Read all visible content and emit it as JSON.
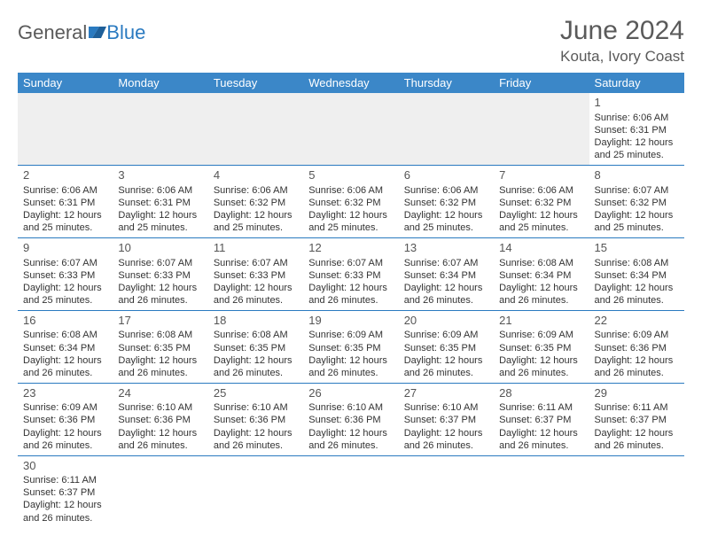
{
  "brand": {
    "part1": "General",
    "part2": "Blue"
  },
  "title": "June 2024",
  "location": "Kouta, Ivory Coast",
  "colors": {
    "header_bg": "#3b87c8",
    "header_fg": "#ffffff",
    "accent": "#2a7ac0",
    "text": "#333333",
    "muted_bg": "#efefef"
  },
  "weekdays": [
    "Sunday",
    "Monday",
    "Tuesday",
    "Wednesday",
    "Thursday",
    "Friday",
    "Saturday"
  ],
  "weeks": [
    [
      null,
      null,
      null,
      null,
      null,
      null,
      {
        "n": "1",
        "sunrise": "6:06 AM",
        "sunset": "6:31 PM",
        "daylight": "12 hours and 25 minutes."
      }
    ],
    [
      {
        "n": "2",
        "sunrise": "6:06 AM",
        "sunset": "6:31 PM",
        "daylight": "12 hours and 25 minutes."
      },
      {
        "n": "3",
        "sunrise": "6:06 AM",
        "sunset": "6:31 PM",
        "daylight": "12 hours and 25 minutes."
      },
      {
        "n": "4",
        "sunrise": "6:06 AM",
        "sunset": "6:32 PM",
        "daylight": "12 hours and 25 minutes."
      },
      {
        "n": "5",
        "sunrise": "6:06 AM",
        "sunset": "6:32 PM",
        "daylight": "12 hours and 25 minutes."
      },
      {
        "n": "6",
        "sunrise": "6:06 AM",
        "sunset": "6:32 PM",
        "daylight": "12 hours and 25 minutes."
      },
      {
        "n": "7",
        "sunrise": "6:06 AM",
        "sunset": "6:32 PM",
        "daylight": "12 hours and 25 minutes."
      },
      {
        "n": "8",
        "sunrise": "6:07 AM",
        "sunset": "6:32 PM",
        "daylight": "12 hours and 25 minutes."
      }
    ],
    [
      {
        "n": "9",
        "sunrise": "6:07 AM",
        "sunset": "6:33 PM",
        "daylight": "12 hours and 25 minutes."
      },
      {
        "n": "10",
        "sunrise": "6:07 AM",
        "sunset": "6:33 PM",
        "daylight": "12 hours and 26 minutes."
      },
      {
        "n": "11",
        "sunrise": "6:07 AM",
        "sunset": "6:33 PM",
        "daylight": "12 hours and 26 minutes."
      },
      {
        "n": "12",
        "sunrise": "6:07 AM",
        "sunset": "6:33 PM",
        "daylight": "12 hours and 26 minutes."
      },
      {
        "n": "13",
        "sunrise": "6:07 AM",
        "sunset": "6:34 PM",
        "daylight": "12 hours and 26 minutes."
      },
      {
        "n": "14",
        "sunrise": "6:08 AM",
        "sunset": "6:34 PM",
        "daylight": "12 hours and 26 minutes."
      },
      {
        "n": "15",
        "sunrise": "6:08 AM",
        "sunset": "6:34 PM",
        "daylight": "12 hours and 26 minutes."
      }
    ],
    [
      {
        "n": "16",
        "sunrise": "6:08 AM",
        "sunset": "6:34 PM",
        "daylight": "12 hours and 26 minutes."
      },
      {
        "n": "17",
        "sunrise": "6:08 AM",
        "sunset": "6:35 PM",
        "daylight": "12 hours and 26 minutes."
      },
      {
        "n": "18",
        "sunrise": "6:08 AM",
        "sunset": "6:35 PM",
        "daylight": "12 hours and 26 minutes."
      },
      {
        "n": "19",
        "sunrise": "6:09 AM",
        "sunset": "6:35 PM",
        "daylight": "12 hours and 26 minutes."
      },
      {
        "n": "20",
        "sunrise": "6:09 AM",
        "sunset": "6:35 PM",
        "daylight": "12 hours and 26 minutes."
      },
      {
        "n": "21",
        "sunrise": "6:09 AM",
        "sunset": "6:35 PM",
        "daylight": "12 hours and 26 minutes."
      },
      {
        "n": "22",
        "sunrise": "6:09 AM",
        "sunset": "6:36 PM",
        "daylight": "12 hours and 26 minutes."
      }
    ],
    [
      {
        "n": "23",
        "sunrise": "6:09 AM",
        "sunset": "6:36 PM",
        "daylight": "12 hours and 26 minutes."
      },
      {
        "n": "24",
        "sunrise": "6:10 AM",
        "sunset": "6:36 PM",
        "daylight": "12 hours and 26 minutes."
      },
      {
        "n": "25",
        "sunrise": "6:10 AM",
        "sunset": "6:36 PM",
        "daylight": "12 hours and 26 minutes."
      },
      {
        "n": "26",
        "sunrise": "6:10 AM",
        "sunset": "6:36 PM",
        "daylight": "12 hours and 26 minutes."
      },
      {
        "n": "27",
        "sunrise": "6:10 AM",
        "sunset": "6:37 PM",
        "daylight": "12 hours and 26 minutes."
      },
      {
        "n": "28",
        "sunrise": "6:11 AM",
        "sunset": "6:37 PM",
        "daylight": "12 hours and 26 minutes."
      },
      {
        "n": "29",
        "sunrise": "6:11 AM",
        "sunset": "6:37 PM",
        "daylight": "12 hours and 26 minutes."
      }
    ],
    [
      {
        "n": "30",
        "sunrise": "6:11 AM",
        "sunset": "6:37 PM",
        "daylight": "12 hours and 26 minutes."
      },
      null,
      null,
      null,
      null,
      null,
      null
    ]
  ],
  "labels": {
    "sunrise": "Sunrise:",
    "sunset": "Sunset:",
    "daylight": "Daylight:"
  }
}
